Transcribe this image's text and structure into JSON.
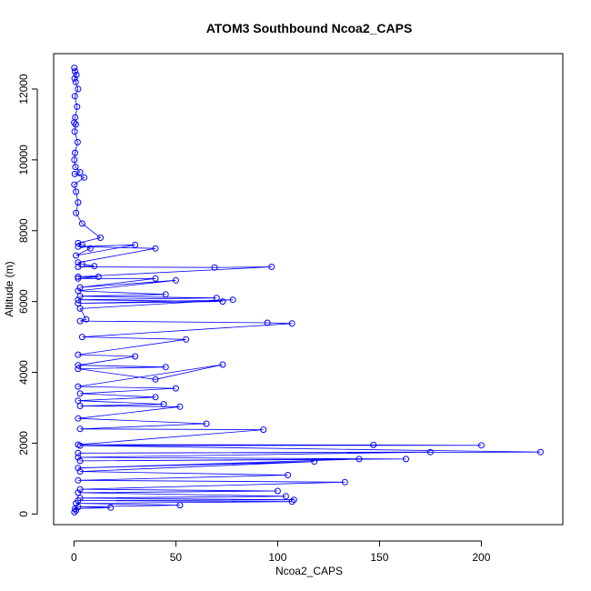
{
  "chart_data": {
    "type": "scatter",
    "title": "ATOM3 Southbound Ncoa2_CAPS",
    "xlabel": "Ncoa2_CAPS",
    "ylabel": "Altitude (m)",
    "xlim": [
      -10,
      240
    ],
    "ylim": [
      -300,
      13000
    ],
    "xticks": [
      0,
      50,
      100,
      150,
      200
    ],
    "yticks": [
      0,
      2000,
      4000,
      6000,
      8000,
      10000,
      12000
    ],
    "xtick_labels": [
      "0",
      "50",
      "100",
      "150",
      "200"
    ],
    "ytick_labels": [
      "0",
      "2000",
      "4000",
      "6000",
      "8000",
      "10000",
      "12000"
    ],
    "grid": false,
    "marker": "open-circle",
    "connected_by_line": true,
    "series_color": "#0000ff",
    "series": [
      {
        "x": [
          0.2,
          0.5,
          1.2,
          0.3,
          0.8,
          2.0,
          0.4,
          1.5,
          0.6,
          0.1,
          0.9,
          0.3,
          1.8,
          0.5,
          0.2,
          0.7,
          3.0,
          0.4,
          5.0,
          0.2,
          1.0,
          2.0,
          1.0,
          4.0,
          13.0,
          2.0,
          4.0,
          8.0,
          1.0,
          30.0,
          2.0,
          40.0,
          2.0,
          4.0,
          10.0,
          2.0,
          69.0,
          97.0,
          2.0,
          12.0,
          2.0,
          40.0,
          3.0,
          50.0,
          2.0,
          45.0,
          3.0,
          70.0,
          2.0,
          73.0,
          2.0,
          78.0,
          3.0,
          6.0,
          3.0,
          95.0,
          107.0,
          4.0,
          55.0,
          2.0,
          30.0,
          2.0,
          45.0,
          2.0,
          40.0,
          73.0,
          2.0,
          50.0,
          3.0,
          40.0,
          2.0,
          44.0,
          3.0,
          52.0,
          2.0,
          65.0,
          3.0,
          93.0,
          2.0,
          147.0,
          200.0,
          3.0,
          229.0,
          2.0,
          175.0,
          2.0,
          163.0,
          3.0,
          140.0,
          2.0,
          118.0,
          3.0,
          105.0,
          2.0,
          133.0,
          3.0,
          100.0,
          2.0,
          104.0,
          3.0,
          108.0,
          2.0,
          107.0,
          1.0,
          52.0,
          2.0,
          18.0,
          0.5,
          1.0,
          0.2
        ],
        "y": [
          12600,
          12500,
          12400,
          12300,
          12200,
          12000,
          11800,
          11500,
          11200,
          11050,
          11000,
          10800,
          10500,
          10200,
          10000,
          9800,
          9650,
          9600,
          9500,
          9300,
          9100,
          8800,
          8500,
          8200,
          7800,
          7650,
          7600,
          7500,
          7300,
          7600,
          7550,
          7500,
          7100,
          7050,
          7000,
          6980,
          6960,
          6980,
          6700,
          6700,
          6650,
          6650,
          6400,
          6600,
          6300,
          6200,
          6150,
          6100,
          6050,
          6000,
          5950,
          6050,
          5800,
          5500,
          5450,
          5400,
          5380,
          5000,
          4930,
          4500,
          4450,
          4200,
          4150,
          4100,
          3800,
          4220,
          3600,
          3550,
          3400,
          3300,
          3200,
          3100,
          3050,
          3030,
          2700,
          2550,
          2400,
          2380,
          1960,
          1950,
          1940,
          1930,
          1750,
          1720,
          1750,
          1600,
          1550,
          1500,
          1550,
          1300,
          1480,
          1200,
          1100,
          950,
          900,
          700,
          650,
          600,
          500,
          450,
          400,
          380,
          350,
          300,
          250,
          200,
          180,
          150,
          100,
          50
        ]
      }
    ]
  }
}
